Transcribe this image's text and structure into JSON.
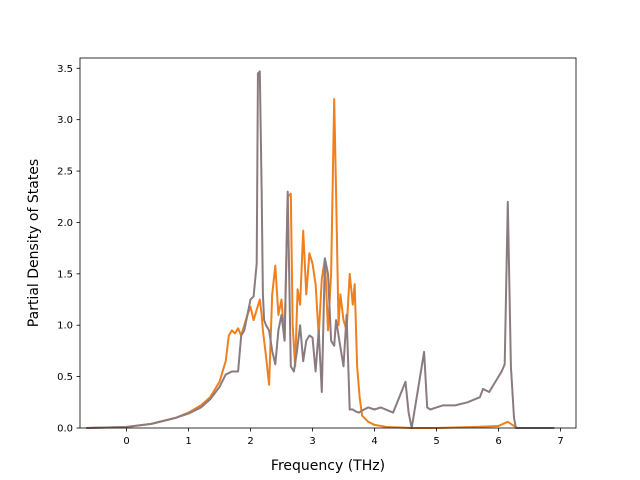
{
  "chart_data": {
    "type": "line",
    "title": "",
    "xlabel": "Frequency (THz)",
    "ylabel": "Partial Density of States",
    "xlim": [
      -0.75,
      7.25
    ],
    "ylim": [
      0,
      3.6
    ],
    "xticks": [
      0,
      1,
      2,
      3,
      4,
      5,
      6,
      7
    ],
    "yticks": [
      0.0,
      0.5,
      1.0,
      1.5,
      2.0,
      2.5,
      3.0,
      3.5
    ],
    "ytick_labels": [
      "0.0",
      "0.5",
      "1.0",
      "1.5",
      "2.0",
      "2.5",
      "3.0",
      "3.5"
    ],
    "grid": false,
    "legend": "none",
    "series": [
      {
        "color": "#f07f1e",
        "x": [
          -0.65,
          0.0,
          0.4,
          0.8,
          1.0,
          1.2,
          1.35,
          1.5,
          1.6,
          1.65,
          1.7,
          1.75,
          1.8,
          1.85,
          1.9,
          1.95,
          2.0,
          2.05,
          2.1,
          2.15,
          2.18,
          2.2,
          2.25,
          2.3,
          2.35,
          2.4,
          2.45,
          2.5,
          2.55,
          2.6,
          2.65,
          2.68,
          2.72,
          2.76,
          2.8,
          2.85,
          2.9,
          2.95,
          3.0,
          3.05,
          3.1,
          3.15,
          3.2,
          3.25,
          3.3,
          3.35,
          3.38,
          3.42,
          3.45,
          3.5,
          3.55,
          3.6,
          3.65,
          3.68,
          3.72,
          3.76,
          3.8,
          3.9,
          4.0,
          4.2,
          4.6,
          5.0,
          5.6,
          6.0,
          6.15,
          6.25,
          6.3,
          6.9
        ],
        "y": [
          0.0,
          0.01,
          0.04,
          0.1,
          0.15,
          0.22,
          0.3,
          0.45,
          0.65,
          0.9,
          0.95,
          0.92,
          0.97,
          0.9,
          1.0,
          1.1,
          1.18,
          1.05,
          1.15,
          1.25,
          1.1,
          0.95,
          0.7,
          0.42,
          1.3,
          1.58,
          1.1,
          1.25,
          0.85,
          2.25,
          2.28,
          1.0,
          0.6,
          1.35,
          1.2,
          1.92,
          1.3,
          1.7,
          1.6,
          1.4,
          0.9,
          1.45,
          1.65,
          0.95,
          1.5,
          3.2,
          2.3,
          1.0,
          1.3,
          1.05,
          0.95,
          1.5,
          1.2,
          1.4,
          0.6,
          0.3,
          0.12,
          0.06,
          0.03,
          0.01,
          0.0,
          0.0,
          0.01,
          0.02,
          0.06,
          0.02,
          0.0,
          0.0
        ]
      },
      {
        "color": "#8b7b7e",
        "x": [
          -0.65,
          0.0,
          0.4,
          0.8,
          1.0,
          1.2,
          1.35,
          1.5,
          1.6,
          1.7,
          1.8,
          1.85,
          1.9,
          1.95,
          2.0,
          2.05,
          2.1,
          2.12,
          2.15,
          2.18,
          2.2,
          2.22,
          2.25,
          2.3,
          2.35,
          2.4,
          2.45,
          2.5,
          2.55,
          2.6,
          2.65,
          2.7,
          2.75,
          2.8,
          2.85,
          2.9,
          2.95,
          3.0,
          3.05,
          3.1,
          3.15,
          3.2,
          3.25,
          3.3,
          3.35,
          3.38,
          3.42,
          3.46,
          3.5,
          3.55,
          3.6,
          3.65,
          3.7,
          3.75,
          3.8,
          3.9,
          4.0,
          4.1,
          4.3,
          4.5,
          4.55,
          4.6,
          4.8,
          4.85,
          4.9,
          5.0,
          5.1,
          5.3,
          5.5,
          5.7,
          5.75,
          5.85,
          5.95,
          6.05,
          6.1,
          6.15,
          6.2,
          6.25,
          6.28,
          6.3,
          6.9
        ],
        "y": [
          0.0,
          0.01,
          0.04,
          0.1,
          0.14,
          0.2,
          0.28,
          0.4,
          0.52,
          0.55,
          0.55,
          0.9,
          0.95,
          1.1,
          1.25,
          1.28,
          1.6,
          3.45,
          3.47,
          2.3,
          1.3,
          1.05,
          1.0,
          0.95,
          0.75,
          0.62,
          0.95,
          1.1,
          0.85,
          2.3,
          0.6,
          0.55,
          0.75,
          1.0,
          0.65,
          0.85,
          0.9,
          0.88,
          0.55,
          0.95,
          0.35,
          1.65,
          1.5,
          0.85,
          0.8,
          1.05,
          0.9,
          0.75,
          0.6,
          1.1,
          0.18,
          0.18,
          0.16,
          0.15,
          0.17,
          0.2,
          0.18,
          0.2,
          0.15,
          0.45,
          0.15,
          0.0,
          0.74,
          0.2,
          0.18,
          0.2,
          0.22,
          0.22,
          0.25,
          0.3,
          0.38,
          0.35,
          0.45,
          0.55,
          0.62,
          2.2,
          0.6,
          0.1,
          0.0,
          0.0,
          0.0
        ]
      }
    ]
  }
}
